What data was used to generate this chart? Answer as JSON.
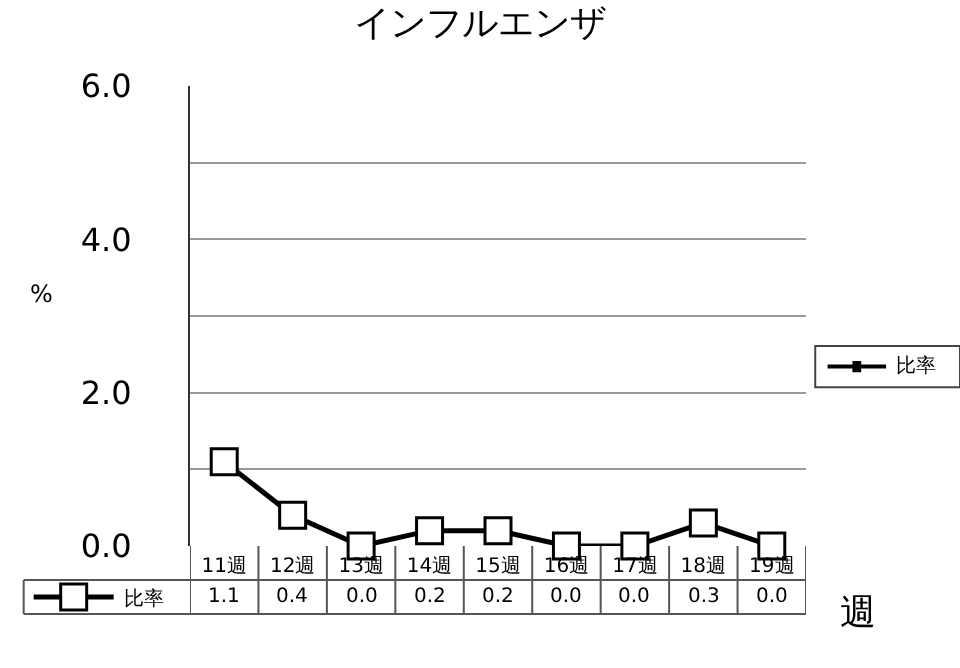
{
  "chart_data": {
    "type": "line",
    "title": "インフルエンザ",
    "xlabel": "週",
    "ylabel": "%",
    "categories": [
      "11週",
      "12週",
      "13週",
      "14週",
      "15週",
      "16週",
      "17週",
      "18週",
      "19週"
    ],
    "series": [
      {
        "name": "比率",
        "color": "#000000",
        "values": [
          1.1,
          0.4,
          0.0,
          0.2,
          0.2,
          0.0,
          0.0,
          0.3,
          0.0
        ],
        "value_labels": [
          "1.1",
          "0.4",
          "0.0",
          "0.2",
          "0.2",
          "0.0",
          "0.0",
          "0.3",
          "0.0"
        ]
      }
    ],
    "ylim": [
      0,
      6
    ],
    "yticks": [
      {
        "value": 0,
        "label": "0.0"
      },
      {
        "value": 1,
        "label": null
      },
      {
        "value": 2,
        "label": "2.0"
      },
      {
        "value": 3,
        "label": null
      },
      {
        "value": 4,
        "label": "4.0"
      },
      {
        "value": 5,
        "label": null
      },
      {
        "value": 6,
        "label": "6.0"
      }
    ],
    "grid": "y",
    "legend": "bottom left",
    "marker": "square",
    "line_style": "solid"
  }
}
